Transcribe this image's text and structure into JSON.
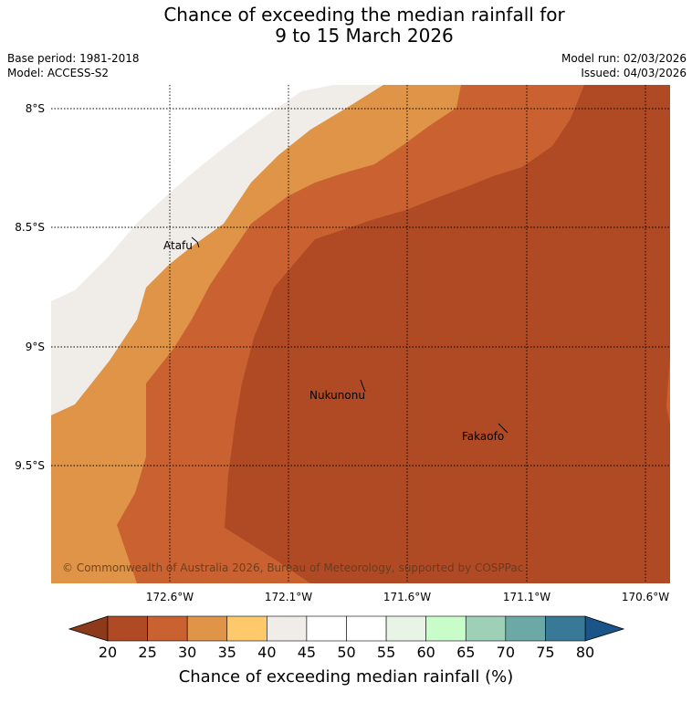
{
  "title_line1": "Chance of exceeding the median rainfall for",
  "title_line2": "9 to 15 March 2026",
  "meta": {
    "base_period": "Base period: 1981-2018",
    "model": "Model: ACCESS-S2",
    "model_run": "Model run: 02/03/2026",
    "issued": "Issued: 04/03/2026"
  },
  "map": {
    "lat_labels": [
      "8°S",
      "8.5°S",
      "9°S",
      "9.5°S"
    ],
    "lon_labels": [
      "172.6°W",
      "172.1°W",
      "171.6°W",
      "171.1°W",
      "170.6°W"
    ],
    "places": [
      "Atafu",
      "Nukunonu",
      "Fakaofo"
    ],
    "copyright": "© Commonwealth of Australia 2026, Bureau of Meteorology, supported by COSPPac"
  },
  "colorbar": {
    "ticks": [
      "20",
      "25",
      "30",
      "35",
      "40",
      "45",
      "50",
      "55",
      "60",
      "65",
      "70",
      "75",
      "80"
    ],
    "label": "Chance of exceeding median rainfall (%)",
    "under_color": "#8c3a1a",
    "over_color": "#1b5487",
    "colors": [
      "#b04a24",
      "#c96230",
      "#e09447",
      "#fdc96b",
      "#f0ede8",
      "#ffffff",
      "#ffffff",
      "#e8f5e6",
      "#c8fcc8",
      "#9ed0b8",
      "#6ca8a6",
      "#3a7898"
    ]
  }
}
